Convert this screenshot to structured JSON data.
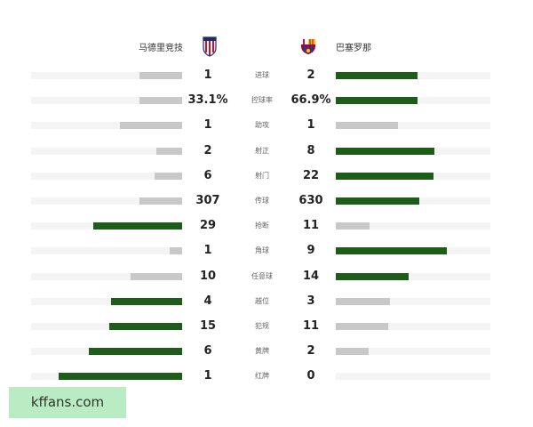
{
  "home": {
    "name": "马德里竞技",
    "logo": "atletico-crest-icon"
  },
  "away": {
    "name": "巴塞罗那",
    "logo": "barcelona-crest-icon"
  },
  "colors": {
    "leader": "#1e5c1a",
    "trailer": "#c8c8c8",
    "track": "#f4f4f4"
  },
  "stats": [
    {
      "label": "进球",
      "home": "1",
      "away": "2",
      "home_fill": 0.28,
      "away_fill": 0.53,
      "leader": "away"
    },
    {
      "label": "控球率",
      "home": "33.1%",
      "away": "66.9%",
      "home_fill": 0.28,
      "away_fill": 0.53,
      "leader": "away"
    },
    {
      "label": "助攻",
      "home": "1",
      "away": "1",
      "home_fill": 0.41,
      "away_fill": 0.4,
      "leader": "none"
    },
    {
      "label": "射正",
      "home": "2",
      "away": "8",
      "home_fill": 0.17,
      "away_fill": 0.64,
      "leader": "away"
    },
    {
      "label": "射门",
      "home": "6",
      "away": "22",
      "home_fill": 0.18,
      "away_fill": 0.63,
      "leader": "away"
    },
    {
      "label": "传球",
      "home": "307",
      "away": "630",
      "home_fill": 0.28,
      "away_fill": 0.54,
      "leader": "away"
    },
    {
      "label": "抢断",
      "home": "29",
      "away": "11",
      "home_fill": 0.59,
      "away_fill": 0.22,
      "leader": "home"
    },
    {
      "label": "角球",
      "home": "1",
      "away": "9",
      "home_fill": 0.08,
      "away_fill": 0.72,
      "leader": "away"
    },
    {
      "label": "任意球",
      "home": "10",
      "away": "14",
      "home_fill": 0.34,
      "away_fill": 0.47,
      "leader": "away"
    },
    {
      "label": "越位",
      "home": "4",
      "away": "3",
      "home_fill": 0.47,
      "away_fill": 0.35,
      "leader": "home"
    },
    {
      "label": "犯规",
      "home": "15",
      "away": "11",
      "home_fill": 0.48,
      "away_fill": 0.34,
      "leader": "home"
    },
    {
      "label": "黄牌",
      "home": "6",
      "away": "2",
      "home_fill": 0.62,
      "away_fill": 0.21,
      "leader": "home"
    },
    {
      "label": "红牌",
      "home": "1",
      "away": "0",
      "home_fill": 0.82,
      "away_fill": 0,
      "leader": "home"
    }
  ],
  "watermark": "kffans.com"
}
